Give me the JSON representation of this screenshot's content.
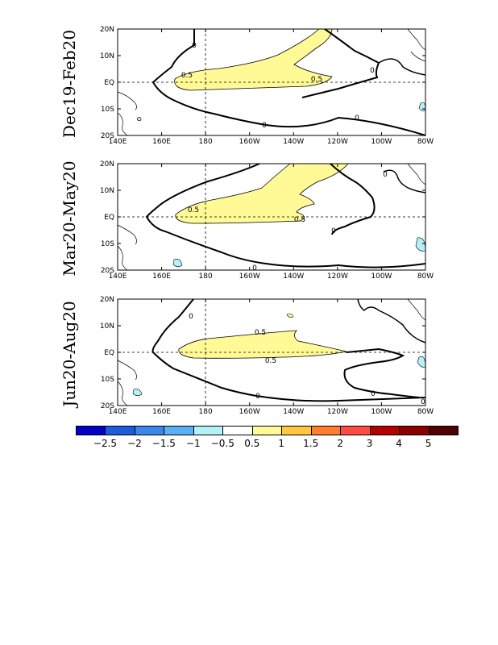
{
  "panels": [
    {
      "title": "Dec19-Feb20"
    },
    {
      "title": "Mar20-May20"
    },
    {
      "title": "Jun20-Aug20"
    }
  ],
  "axes": {
    "x_ticks": [
      "140E",
      "160E",
      "180",
      "160W",
      "140W",
      "120W",
      "100W",
      "80W"
    ],
    "y_ticks": [
      "20N",
      "10N",
      "EQ",
      "10S",
      "20S"
    ],
    "x_range_deg_east": [
      140,
      280
    ],
    "y_range_deg": [
      -20,
      20
    ]
  },
  "contour_labels": {
    "zero": "0",
    "half": "0.5"
  },
  "colorbar": {
    "colors": [
      "#0000c8",
      "#1e5adc",
      "#3c87eb",
      "#5aaff5",
      "#b4f0fa",
      "#ffffff",
      "#fffa96",
      "#ffc83c",
      "#ff7d2d",
      "#ff4b41",
      "#b40000",
      "#8c0000",
      "#500000"
    ],
    "labels": [
      "-2.5",
      "-2",
      "-1.5",
      "-1",
      "-0.5",
      "0.5",
      "1",
      "1.5",
      "2",
      "3",
      "4",
      "5"
    ]
  },
  "colors": {
    "positive_fill": "#fffa96",
    "negative_fill": "#b4f0fa",
    "contour": "#000000"
  }
}
